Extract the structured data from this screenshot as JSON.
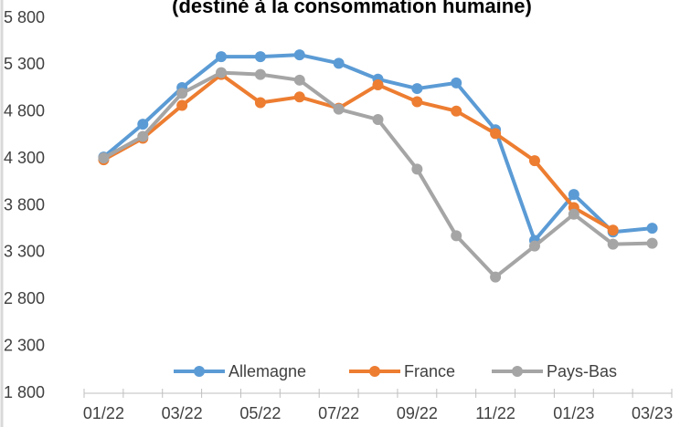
{
  "chart_data": {
    "type": "line",
    "title": "(destiné à la consommation humaine)",
    "categories": [
      "01/22",
      null,
      "03/22",
      null,
      "05/22",
      null,
      "07/22",
      null,
      "09/22",
      null,
      "11/22",
      null,
      "01/23",
      null,
      "03/23"
    ],
    "series": [
      {
        "name": "Allemagne",
        "color": "#5b9bd5",
        "values": [
          4320,
          4670,
          5060,
          5390,
          5390,
          5410,
          5320,
          5150,
          5050,
          5110,
          4610,
          3430,
          3920,
          3520,
          3560
        ]
      },
      {
        "name": "France",
        "color": "#ed7d31",
        "values": [
          4290,
          4520,
          4870,
          5200,
          4900,
          4960,
          4840,
          5090,
          4910,
          4810,
          4570,
          4280,
          3780,
          3540,
          null
        ]
      },
      {
        "name": "Pays-Bas",
        "color": "#a5a5a5",
        "values": [
          4310,
          4540,
          5000,
          5220,
          5200,
          5140,
          4830,
          4720,
          4190,
          3480,
          3040,
          3370,
          3710,
          3390,
          3400
        ]
      }
    ],
    "ylim": [
      1800,
      5800
    ],
    "yticks": [
      {
        "value": 1800,
        "label": "1 800"
      },
      {
        "value": 2300,
        "label": "2 300"
      },
      {
        "value": 2800,
        "label": "2 800"
      },
      {
        "value": 3300,
        "label": "3 300"
      },
      {
        "value": 3800,
        "label": "3 800"
      },
      {
        "value": 4300,
        "label": "4 300"
      },
      {
        "value": 4800,
        "label": "4 800"
      },
      {
        "value": 5300,
        "label": "5 300"
      },
      {
        "value": 5800,
        "label": "5 800"
      }
    ],
    "grid": false,
    "legend": "bottom"
  }
}
